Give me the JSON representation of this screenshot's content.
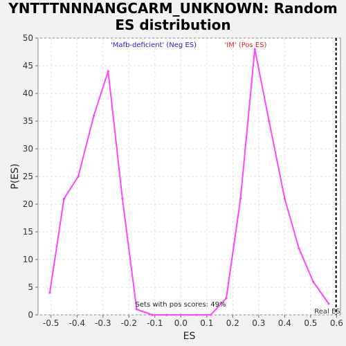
{
  "chart_data": {
    "type": "line",
    "title_lines": [
      "YNTTTNNNANGCARM_UNKNOWN: Random",
      "ES distribution"
    ],
    "xlabel": "ES",
    "ylabel": "P(ES)",
    "xlim": [
      -0.55,
      0.615
    ],
    "ylim": [
      0,
      50
    ],
    "x_ticks": [
      -0.5,
      -0.4,
      -0.3,
      -0.2,
      -0.1,
      0.0,
      0.1,
      0.2,
      0.3,
      0.4,
      0.5,
      0.6
    ],
    "x_tick_labels": [
      "-0.5",
      "-0.4",
      "-0.3",
      "-0.2",
      "-0.1",
      "0.0",
      "0.1",
      "0.2",
      "0.3",
      "0.4",
      "0.5",
      "0.6"
    ],
    "y_ticks": [
      0,
      5,
      10,
      15,
      20,
      25,
      30,
      35,
      40,
      45,
      50
    ],
    "y_tick_labels": [
      "0",
      "5",
      "10",
      "15",
      "20",
      "25",
      "30",
      "35",
      "40",
      "45",
      "50"
    ],
    "grid": true,
    "series": [
      {
        "color": "#ff44ff",
        "x": [
          -0.505,
          -0.45,
          -0.395,
          -0.335,
          -0.28,
          -0.225,
          -0.17,
          -0.11,
          -0.055,
          0.0,
          0.06,
          0.115,
          0.175,
          0.23,
          0.285,
          0.34,
          0.4,
          0.455,
          0.51,
          0.57
        ],
        "y": [
          4,
          21,
          25,
          36,
          44,
          21,
          1,
          0,
          0,
          0,
          0,
          0,
          3,
          21,
          48,
          35,
          21,
          12,
          6,
          2
        ]
      }
    ],
    "real_es": 0.598,
    "real_es_label": "Real ES",
    "neg_label": "'Mafb-deficient' (Neg ES)",
    "neg_color": "#2222cc",
    "pos_label": "'IM' (Pos ES)",
    "pos_color": "#dd2222",
    "annotation": "Sets with pos scores: 49%"
  }
}
